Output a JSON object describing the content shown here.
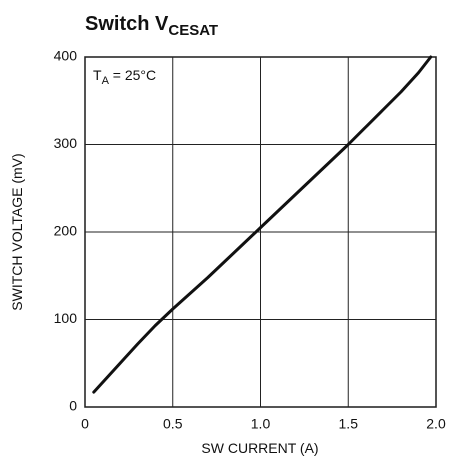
{
  "chart_data": {
    "type": "line",
    "title": "Switch V",
    "title_subscript": "CESAT",
    "annotation": {
      "text": "T",
      "subscript": "A",
      "suffix": " = 25°C"
    },
    "xlabel": "SW CURRENT (A)",
    "ylabel": "SWITCH VOLTAGE (mV)",
    "x": [
      0.05,
      0.1,
      0.2,
      0.3,
      0.4,
      0.5,
      0.6,
      0.7,
      0.8,
      0.9,
      1.0,
      1.1,
      1.2,
      1.3,
      1.4,
      1.5,
      1.6,
      1.7,
      1.8,
      1.9,
      1.97
    ],
    "series": [
      {
        "name": "VCESAT",
        "color": "#111111",
        "values": [
          17,
          28,
          50,
          72,
          93,
          112,
          130,
          148,
          167,
          186,
          205,
          224,
          243,
          262,
          281,
          300,
          320,
          340,
          360,
          382,
          400
        ]
      }
    ],
    "xlim": [
      0,
      2
    ],
    "ylim": [
      0,
      400
    ],
    "xticks": [
      0,
      0.5,
      {
        "value": 1,
        "label": "1.0"
      },
      1.5,
      {
        "value": 2,
        "label": "2.0"
      }
    ],
    "yticks": [
      0,
      100,
      200,
      300,
      400
    ],
    "grid": true
  }
}
